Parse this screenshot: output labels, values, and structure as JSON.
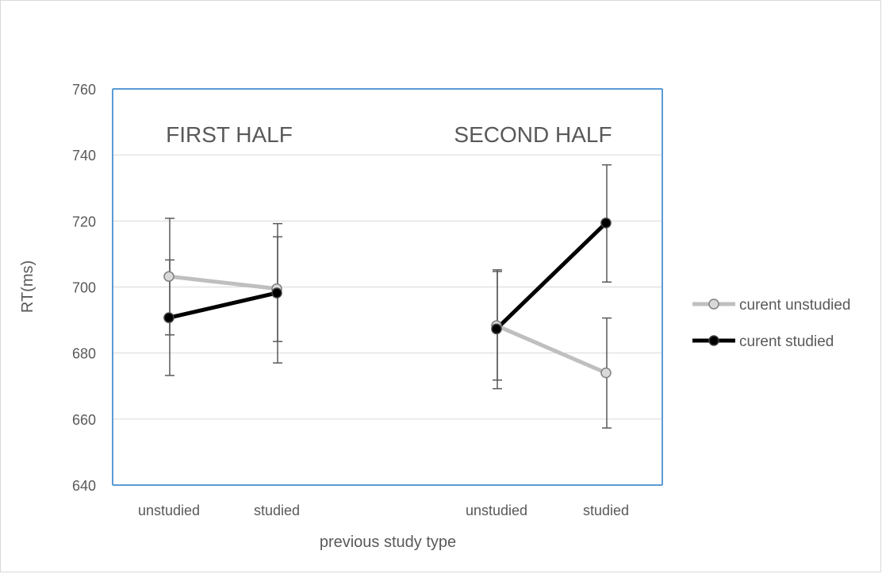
{
  "chart_data": {
    "type": "line",
    "title": "",
    "xlabel": "previous study type",
    "ylabel": "RT(ms)",
    "ylim": [
      640,
      760
    ],
    "yticks": [
      640,
      660,
      680,
      700,
      720,
      740,
      760
    ],
    "grid": true,
    "legend_position": "right",
    "panels": [
      {
        "label": "FIRST HALF",
        "categories": [
          "unstudied",
          "studied"
        ],
        "series": [
          {
            "name": "curent unstudied",
            "values": [
              703.2,
              699.5
            ],
            "err_lo": [
              685.5,
              683.5
            ],
            "err_hi": [
              720.8,
              719.2
            ]
          },
          {
            "name": "curent studied",
            "values": [
              690.7,
              698.2
            ],
            "err_lo": [
              673.2,
              677.0
            ],
            "err_hi": [
              708.2,
              715.2
            ]
          }
        ]
      },
      {
        "label": "SECOND HALF",
        "categories": [
          "unstudied",
          "studied"
        ],
        "series": [
          {
            "name": "curent unstudied",
            "values": [
              688.3,
              674.0
            ],
            "err_lo": [
              671.8,
              657.3
            ],
            "err_hi": [
              704.7,
              690.6
            ]
          },
          {
            "name": "curent studied",
            "values": [
              687.3,
              719.4
            ],
            "err_lo": [
              669.2,
              701.5
            ],
            "err_hi": [
              705.2,
              737.0
            ]
          }
        ]
      }
    ],
    "series_styles": [
      {
        "name": "curent unstudied",
        "line_color": "#bfbfbf",
        "marker_fill": "#d9d9d9",
        "marker_stroke": "#808080"
      },
      {
        "name": "curent studied",
        "line_color": "#000000",
        "marker_fill": "#000000",
        "marker_stroke": "#404040"
      }
    ],
    "colors": {
      "axis": "#5b9bd5",
      "grid": "#d9d9d9",
      "error_bar": "#595959",
      "text": "#595959"
    }
  }
}
